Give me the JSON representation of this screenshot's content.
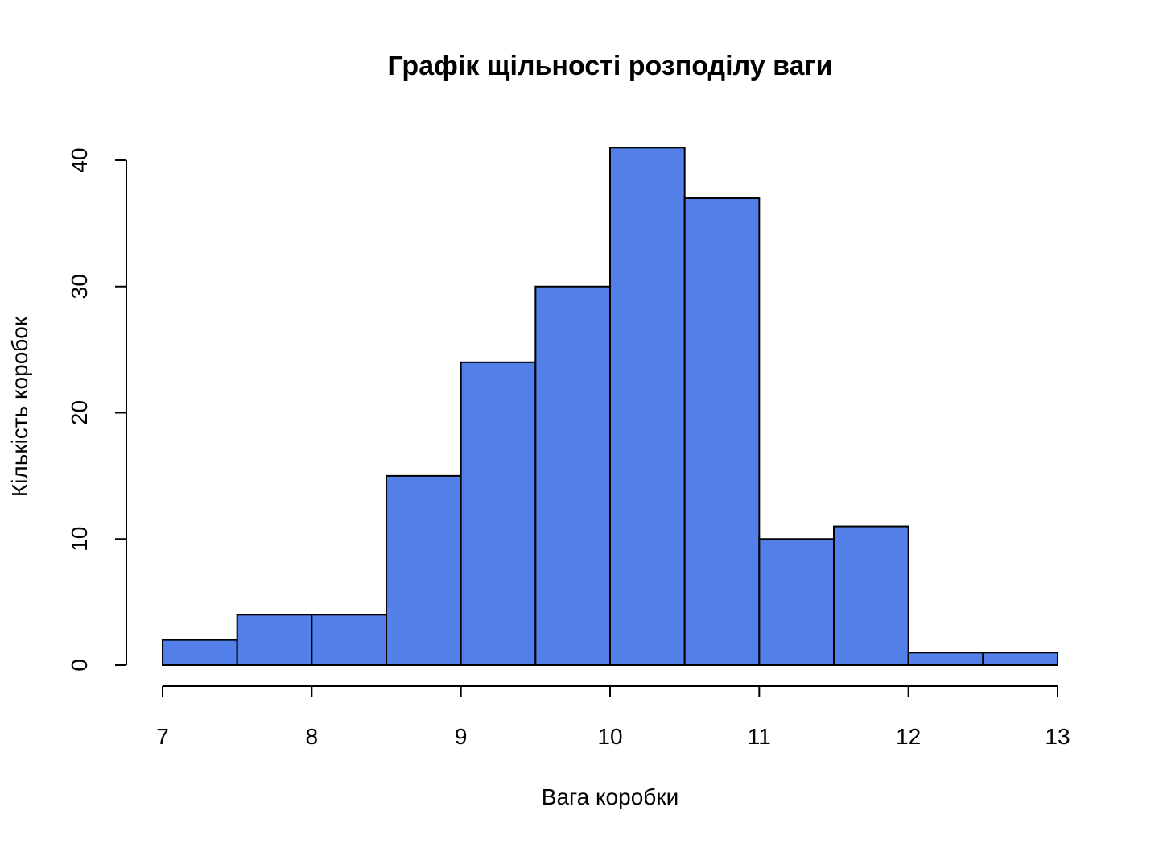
{
  "chart_data": {
    "type": "bar",
    "subtype": "histogram",
    "title": "Графік щільності розподілу ваги",
    "xlabel": "Вага коробки",
    "ylabel": "Кількість коробок",
    "bins": [
      {
        "start": 7.0,
        "end": 7.5,
        "count": 2
      },
      {
        "start": 7.5,
        "end": 8.0,
        "count": 4
      },
      {
        "start": 8.0,
        "end": 8.5,
        "count": 4
      },
      {
        "start": 8.5,
        "end": 9.0,
        "count": 15
      },
      {
        "start": 9.0,
        "end": 9.5,
        "count": 24
      },
      {
        "start": 9.5,
        "end": 10.0,
        "count": 30
      },
      {
        "start": 10.0,
        "end": 10.5,
        "count": 41
      },
      {
        "start": 10.5,
        "end": 11.0,
        "count": 37
      },
      {
        "start": 11.0,
        "end": 11.5,
        "count": 10
      },
      {
        "start": 11.5,
        "end": 12.0,
        "count": 11
      },
      {
        "start": 12.0,
        "end": 12.5,
        "count": 1
      },
      {
        "start": 12.5,
        "end": 13.0,
        "count": 1
      }
    ],
    "x_ticks": [
      "7",
      "8",
      "9",
      "10",
      "11",
      "12",
      "13"
    ],
    "y_ticks": [
      "0",
      "10",
      "20",
      "30",
      "40"
    ],
    "xlim": [
      7,
      13
    ],
    "ylim": [
      0,
      40
    ],
    "bar_color": "#527FE8",
    "edge_color": "#000000",
    "grid": false,
    "legend": "none"
  }
}
